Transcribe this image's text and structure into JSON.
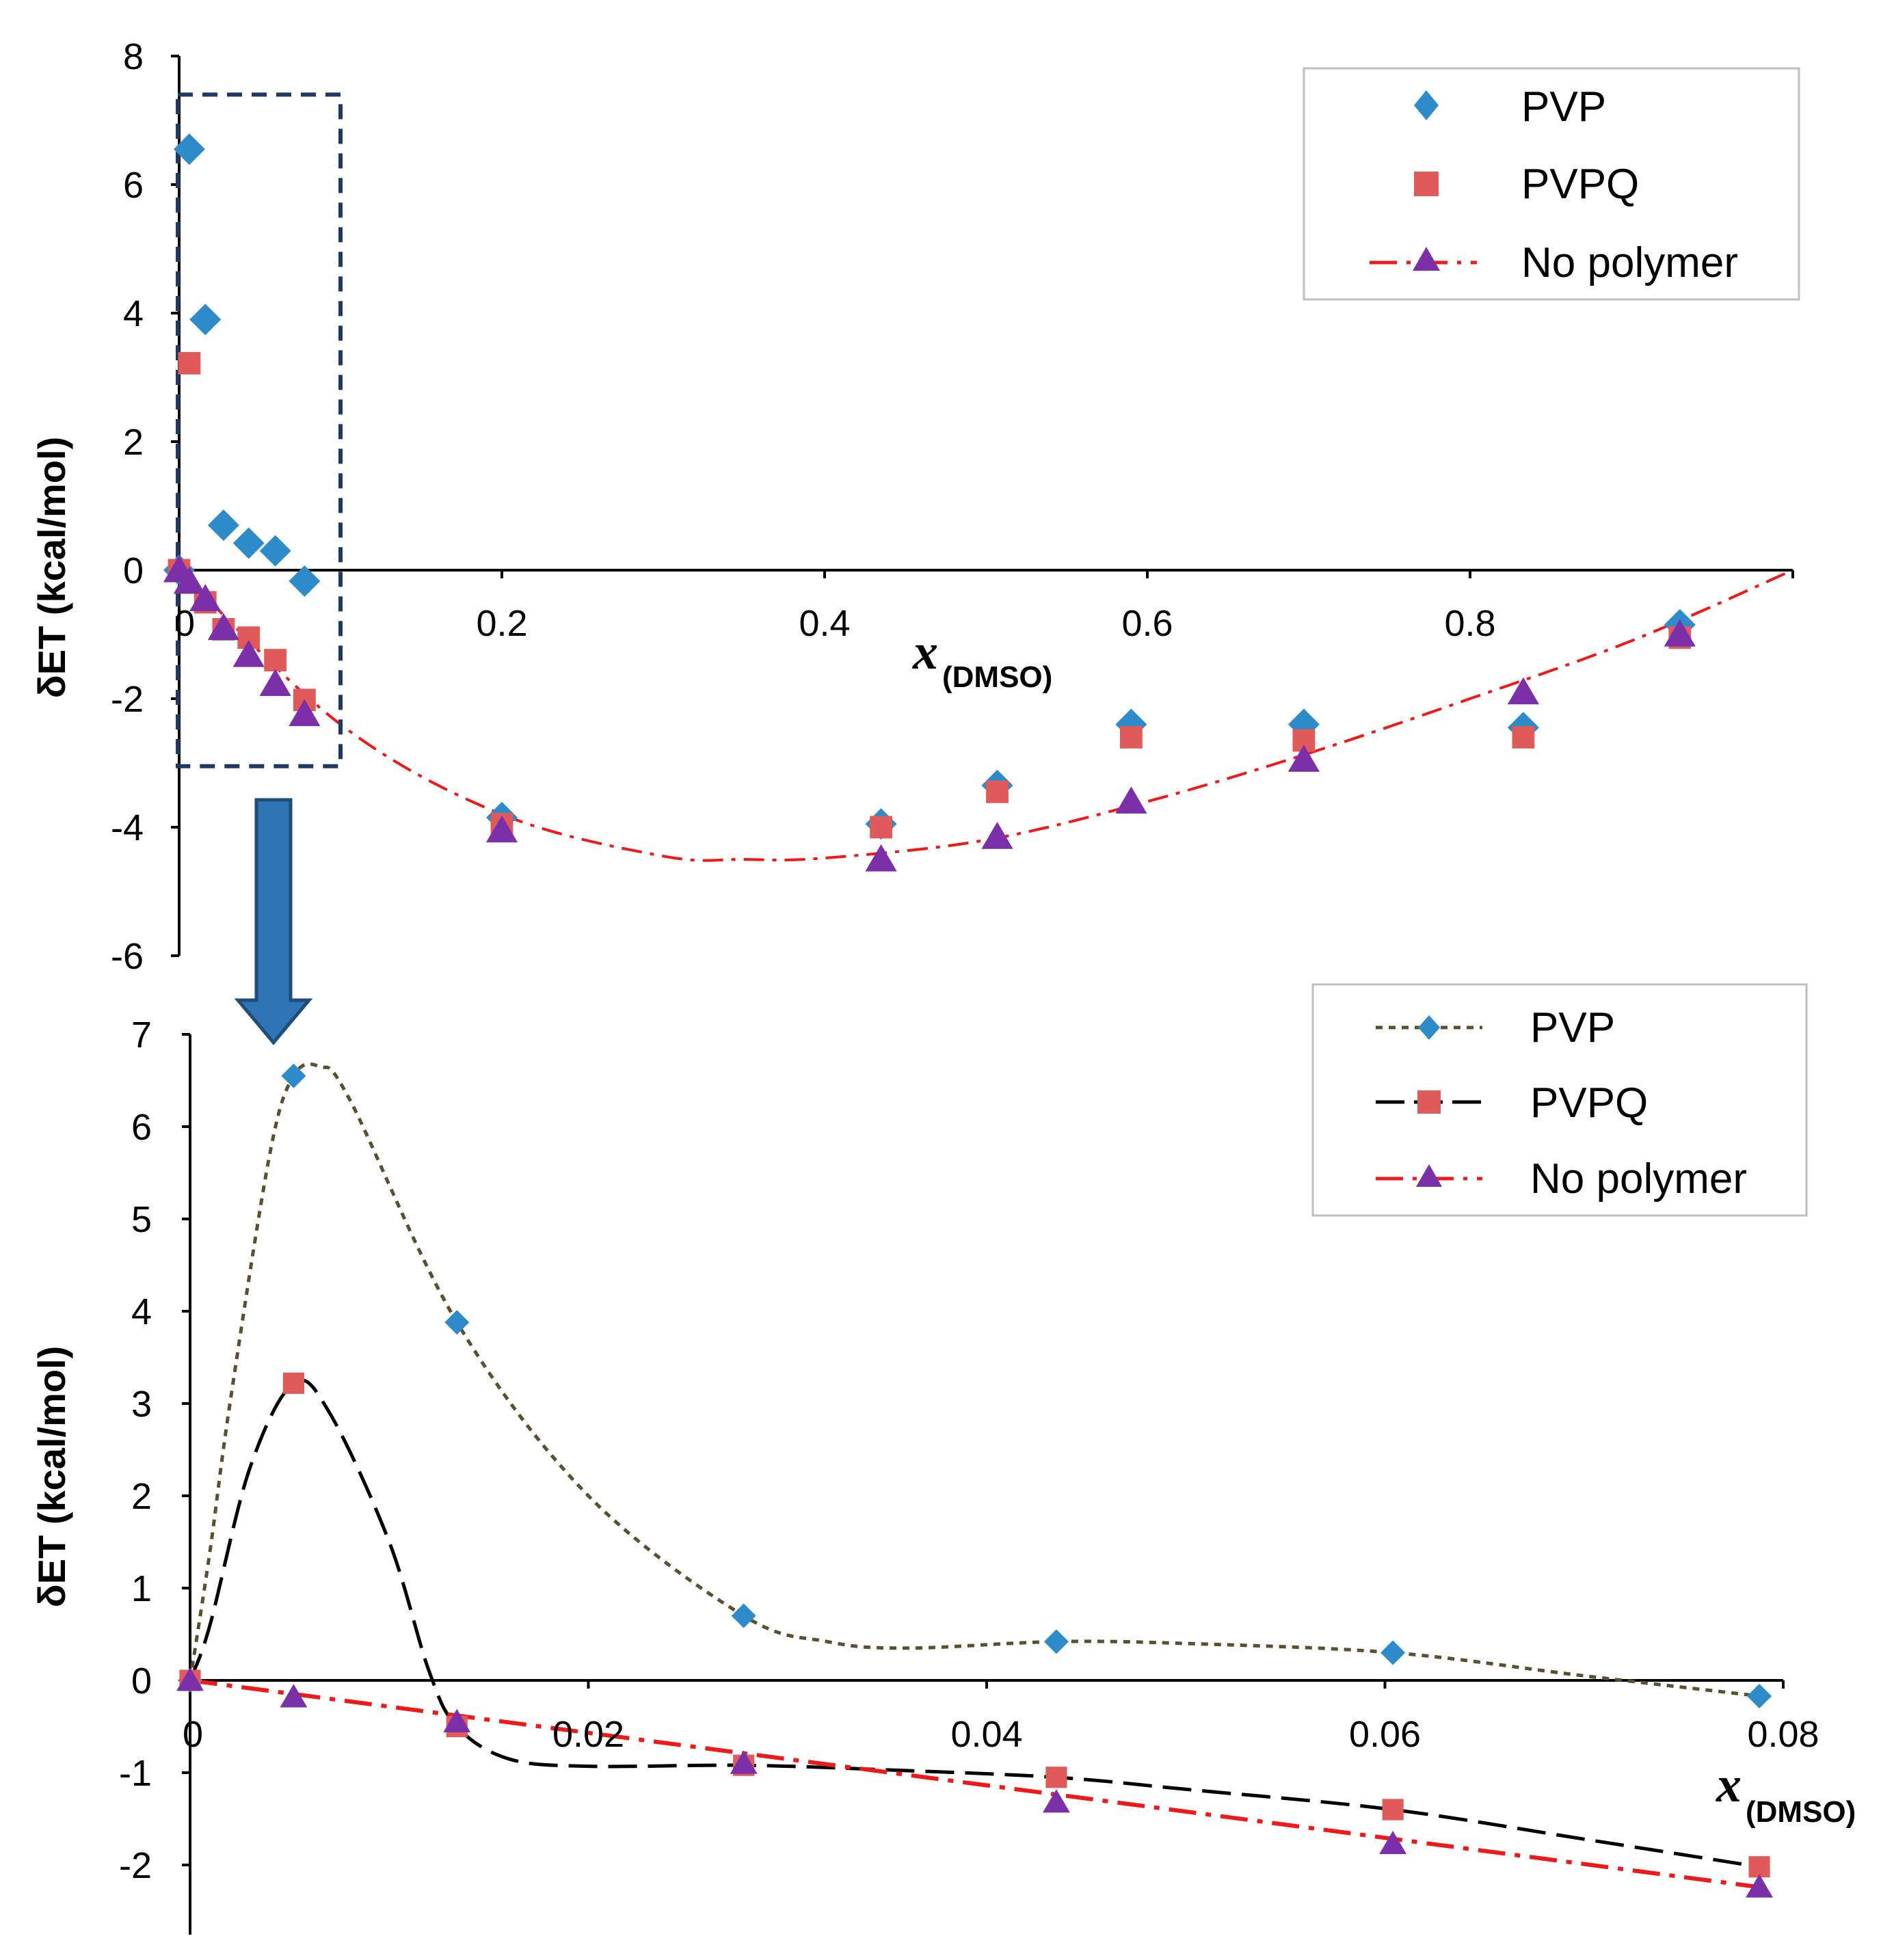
{
  "figure": {
    "arrow_color": "#2E75B6",
    "zoom_box_color": "#1F3864",
    "colors": {
      "pvp": "#2E8BC9",
      "pvpq": "#E05A5A",
      "nopoly": "#7B2FA8",
      "nopoly_line": "#F01818",
      "pvp_line": "#5A5030",
      "pvpq_line": "#000000"
    }
  },
  "chart_data": [
    {
      "type": "scatter",
      "panel": "top",
      "ylabel": "δET (kcal/mol)",
      "xlabel": "x",
      "xlabel_sub": "(DMSO)",
      "xlim": [
        0,
        1
      ],
      "ylim": [
        -6,
        8
      ],
      "xticks": [
        0,
        0.2,
        0.4,
        0.6,
        0.8
      ],
      "xtick_labels": [
        "0",
        "0.2",
        "0.4",
        "0.6",
        "0.8"
      ],
      "yticks": [
        8,
        6,
        4,
        2,
        0,
        -2,
        -4,
        -6
      ],
      "ytick_labels": [
        "8",
        "6",
        "4",
        "2",
        "0",
        "-2",
        "-4",
        "-6"
      ],
      "legend": [
        "PVP",
        "PVPQ",
        "No polymer"
      ],
      "zoom_box": {
        "x": [
          0,
          0.1
        ],
        "y": [
          -3.05,
          7.4
        ]
      },
      "series": [
        {
          "name": "PVP",
          "marker": "diamond",
          "line": "none",
          "x": [
            0,
            0.0063,
            0.0162,
            0.0275,
            0.0431,
            0.0596,
            0.0777,
            0.2,
            0.435,
            0.507,
            0.59,
            0.697,
            0.833,
            0.93
          ],
          "y": [
            0,
            6.55,
            3.9,
            0.7,
            0.42,
            0.3,
            -0.17,
            -3.85,
            -3.95,
            -3.35,
            -2.4,
            -2.4,
            -2.45,
            -0.85
          ]
        },
        {
          "name": "PVPQ",
          "marker": "square",
          "line": "none",
          "x": [
            0,
            0.0063,
            0.0162,
            0.0275,
            0.0431,
            0.0596,
            0.0777,
            0.2,
            0.435,
            0.507,
            0.59,
            0.697,
            0.833,
            0.93
          ],
          "y": [
            0,
            3.22,
            -0.5,
            -0.92,
            -1.05,
            -1.4,
            -2.02,
            -3.95,
            -4.0,
            -3.45,
            -2.6,
            -2.65,
            -2.6,
            -1.05
          ]
        },
        {
          "name": "No polymer",
          "marker": "triangle",
          "line": "dash-dot",
          "x": [
            0,
            0.0063,
            0.0162,
            0.0275,
            0.0431,
            0.0596,
            0.0777,
            0.2,
            0.435,
            0.507,
            0.59,
            0.697,
            0.833,
            0.93
          ],
          "y": [
            0,
            -0.18,
            -0.45,
            -0.9,
            -1.32,
            -1.77,
            -2.24,
            -4.05,
            -4.5,
            -4.15,
            -3.6,
            -2.95,
            -1.9,
            -1.0
          ]
        }
      ],
      "fit_curve": {
        "name": "No polymer fit",
        "x": [
          0,
          0.1,
          0.2,
          0.3,
          0.35,
          0.4,
          0.5,
          0.6,
          0.7,
          0.8,
          0.9,
          1.0
        ],
        "y": [
          0,
          -2.4,
          -3.8,
          -4.45,
          -4.5,
          -4.48,
          -4.2,
          -3.6,
          -2.85,
          -2.0,
          -1.1,
          0
        ]
      }
    },
    {
      "type": "line",
      "panel": "bottom",
      "ylabel": "δET (kcal/mol)",
      "xlabel": "x",
      "xlabel_sub": "(DMSO)",
      "xlim": [
        0,
        0.08
      ],
      "ylim": [
        -2.7,
        7
      ],
      "xticks": [
        0,
        0.02,
        0.04,
        0.06,
        0.08
      ],
      "xtick_labels": [
        "0",
        "0.02",
        "0.04",
        "0.06",
        "0.08"
      ],
      "yticks": [
        7,
        6,
        5,
        4,
        3,
        2,
        1,
        0,
        -1,
        -2
      ],
      "ytick_labels": [
        "7",
        "6",
        "5",
        "4",
        "3",
        "2",
        "1",
        "0",
        "-1",
        "-2"
      ],
      "legend": [
        "PVP",
        "PVPQ",
        "No polymer"
      ],
      "series": [
        {
          "name": "PVP",
          "marker": "diamond",
          "line": "dotted",
          "x": [
            0,
            0.0052,
            0.0134,
            0.0278,
            0.0435,
            0.0604,
            0.0788
          ],
          "y": [
            0,
            6.55,
            3.88,
            0.7,
            0.42,
            0.3,
            -0.17
          ]
        },
        {
          "name": "PVPQ",
          "marker": "square",
          "line": "dashed",
          "x": [
            0,
            0.0052,
            0.0134,
            0.0278,
            0.0435,
            0.0604,
            0.0788
          ],
          "y": [
            0,
            3.22,
            -0.5,
            -0.92,
            -1.05,
            -1.4,
            -2.02
          ]
        },
        {
          "name": "No polymer",
          "marker": "triangle",
          "line": "dash-dot",
          "x": [
            0,
            0.0052,
            0.0134,
            0.0278,
            0.0435,
            0.0604,
            0.0788
          ],
          "y": [
            0,
            -0.18,
            -0.45,
            -0.9,
            -1.32,
            -1.77,
            -2.24
          ]
        }
      ],
      "curves": {
        "PVP": {
          "x": [
            0,
            0.001,
            0.002,
            0.004,
            0.0052,
            0.0065,
            0.008,
            0.0134,
            0.02,
            0.0278,
            0.032,
            0.036,
            0.0435,
            0.05,
            0.0604,
            0.07,
            0.0788
          ],
          "y": [
            0,
            1.4,
            3.0,
            5.7,
            6.55,
            6.65,
            6.3,
            3.88,
            2.0,
            0.7,
            0.42,
            0.35,
            0.42,
            0.4,
            0.3,
            0.05,
            -0.17
          ]
        },
        "PVPQ": {
          "x": [
            0,
            0.001,
            0.003,
            0.0052,
            0.007,
            0.01,
            0.012,
            0.0134,
            0.016,
            0.02,
            0.0278,
            0.035,
            0.0435,
            0.05,
            0.0604,
            0.07,
            0.0788
          ],
          "y": [
            0,
            0.6,
            2.3,
            3.22,
            2.9,
            1.5,
            0.1,
            -0.5,
            -0.85,
            -0.93,
            -0.92,
            -0.97,
            -1.05,
            -1.18,
            -1.4,
            -1.72,
            -2.02
          ]
        },
        "No polymer": {
          "x": [
            0,
            0.0788
          ],
          "y": [
            0,
            -2.24
          ]
        }
      }
    }
  ]
}
